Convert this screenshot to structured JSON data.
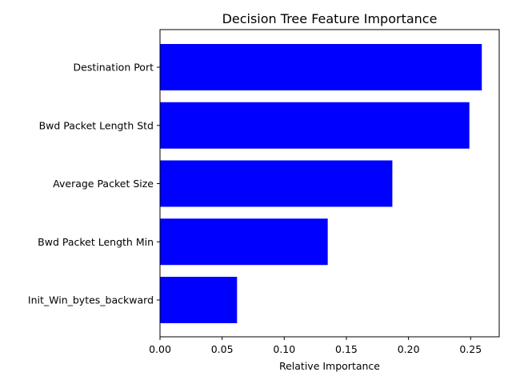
{
  "chart_data": {
    "type": "bar",
    "orientation": "horizontal",
    "title": "Decision Tree Feature Importance",
    "xlabel": "Relative Importance",
    "ylabel": "",
    "categories": [
      "Destination Port",
      "Bwd Packet Length Std",
      "Average Packet Size",
      "Bwd Packet Length Min",
      "Init_Win_bytes_backward"
    ],
    "values": [
      0.259,
      0.249,
      0.187,
      0.135,
      0.062
    ],
    "xlim": [
      0,
      0.273
    ],
    "xticks": [
      "0.00",
      "0.05",
      "0.10",
      "0.15",
      "0.20",
      "0.25"
    ],
    "bar_color": "#0000ff",
    "grid": false,
    "legend": "none"
  }
}
